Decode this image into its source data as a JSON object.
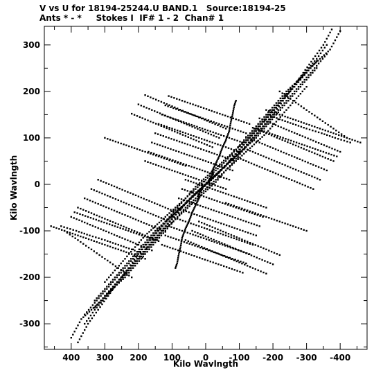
{
  "chart_data": {
    "type": "scatter",
    "title": "V vs U for 18194-25244.U BAND.1   Source:18194-25",
    "subtitle": "Ants * - *     Stokes I  IF# 1 - 2  Chan# 1",
    "xlabel": "Kilo Wavlngth",
    "ylabel": "Kilo Wavlngth",
    "xlim": [
      480,
      -480
    ],
    "ylim": [
      -355,
      340
    ],
    "x_ticks": [
      400,
      300,
      200,
      100,
      0,
      -100,
      -200,
      -300,
      -400
    ],
    "x_tick_labels": [
      "400",
      "300",
      "200",
      "100",
      "0",
      "-100",
      "-200",
      "-300",
      "-400"
    ],
    "y_ticks": [
      300,
      200,
      100,
      0,
      -100,
      -200,
      -300
    ],
    "y_tick_labels": [
      "300",
      "200",
      "100",
      "0",
      "-100",
      "-200",
      "-300"
    ],
    "grid": false,
    "marker_color": "#000000",
    "uv_tracks": {
      "description_free": true,
      "anchor_a": [
        [
          -10,
          0
        ],
        [
          -10,
          10
        ],
        [
          -20,
          20
        ],
        [
          -20,
          30
        ],
        [
          -30,
          45
        ],
        [
          -40,
          60
        ],
        [
          -50,
          80
        ],
        [
          -60,
          95
        ],
        [
          -70,
          115
        ],
        [
          -75,
          135
        ],
        [
          -80,
          150
        ],
        [
          -85,
          170
        ],
        [
          -90,
          180
        ]
      ],
      "tracks": [
        {
          "u": [
            430,
            385,
            345,
            300,
            260,
            220,
            185
          ],
          "v": [
            -90,
            -100,
            -110,
            -120,
            -130,
            -140,
            -150
          ]
        },
        {
          "u": [
            400,
            360,
            320,
            280,
            240,
            200,
            160
          ],
          "v": [
            -70,
            -82,
            -94,
            -106,
            -118,
            -130,
            -142
          ]
        },
        {
          "u": [
            380,
            340,
            300,
            260,
            220,
            180,
            140
          ],
          "v": [
            -50,
            -62,
            -74,
            -86,
            -98,
            -110,
            -122
          ]
        },
        {
          "u": [
            360,
            320,
            280,
            240,
            200,
            160,
            120
          ],
          "v": [
            -30,
            -42,
            -54,
            -66,
            -78,
            -90,
            -102
          ]
        },
        {
          "u": [
            340,
            300,
            260,
            220,
            180,
            140,
            100
          ],
          "v": [
            -10,
            -22,
            -34,
            -46,
            -58,
            -70,
            -82
          ]
        },
        {
          "u": [
            320,
            280,
            240,
            200,
            160,
            120,
            80
          ],
          "v": [
            10,
            -2,
            -14,
            -26,
            -38,
            -50,
            -62
          ]
        },
        {
          "u": [
            180,
            140,
            100,
            60,
            20,
            -20,
            -60
          ],
          "v": [
            50,
            40,
            30,
            20,
            10,
            0,
            -10
          ]
        },
        {
          "u": [
            170,
            130,
            90,
            50,
            10,
            -30,
            -70
          ],
          "v": [
            70,
            60,
            50,
            40,
            30,
            20,
            10
          ]
        },
        {
          "u": [
            160,
            120,
            80,
            40,
            0,
            -40,
            -80
          ],
          "v": [
            90,
            80,
            70,
            60,
            50,
            40,
            30
          ]
        },
        {
          "u": [
            150,
            110,
            70,
            30,
            -10,
            -50,
            -90
          ],
          "v": [
            110,
            100,
            90,
            80,
            70,
            60,
            50
          ]
        },
        {
          "u": [
            140,
            100,
            60,
            20,
            -20,
            -60,
            -100
          ],
          "v": [
            130,
            120,
            110,
            100,
            90,
            80,
            70
          ]
        },
        {
          "u": [
            130,
            90,
            50,
            10,
            -30,
            -70,
            -110
          ],
          "v": [
            150,
            140,
            130,
            120,
            110,
            100,
            90
          ]
        },
        {
          "u": [
            120,
            80,
            40,
            0,
            -40,
            -80,
            -120
          ],
          "v": [
            170,
            160,
            150,
            140,
            130,
            120,
            110
          ]
        },
        {
          "u": [
            110,
            70,
            30,
            -10,
            -50,
            -90,
            -130
          ],
          "v": [
            190,
            180,
            170,
            160,
            150,
            140,
            130
          ]
        },
        {
          "u": [
            -60,
            -100,
            -140,
            -180,
            -220,
            -260,
            -300
          ],
          "v": [
            -40,
            -50,
            -60,
            -70,
            -80,
            -90,
            -100
          ]
        },
        {
          "u": [
            20,
            -20,
            -60,
            -100,
            -140,
            -180,
            -220
          ],
          "v": [
            -80,
            -92,
            -104,
            -116,
            -128,
            -140,
            -152
          ]
        },
        {
          "u": [
            40,
            0,
            -40,
            -80,
            -120,
            -160,
            -200
          ],
          "v": [
            -100,
            -112,
            -124,
            -136,
            -148,
            -160,
            -172
          ]
        },
        {
          "u": [
            60,
            20,
            -20,
            -60,
            -100,
            -140,
            -180
          ],
          "v": [
            -120,
            -132,
            -144,
            -156,
            -168,
            -180,
            -192
          ]
        },
        {
          "u": [
            -150,
            -190,
            -230,
            -270,
            -310,
            -350,
            -390
          ],
          "v": [
            120,
            110,
            100,
            90,
            80,
            70,
            60
          ]
        },
        {
          "u": [
            -180,
            -220,
            -260,
            -300,
            -340,
            -380,
            -420
          ],
          "v": [
            160,
            150,
            140,
            130,
            120,
            110,
            100
          ]
        },
        {
          "u": [
            -220,
            -260,
            -300,
            -340,
            -380,
            -420,
            -460
          ],
          "v": [
            200,
            180,
            160,
            140,
            120,
            100,
            90
          ]
        }
      ],
      "diagonals": [
        {
          "u": [
            380,
            350,
            320,
            290,
            260,
            230,
            200,
            170,
            140,
            110,
            80,
            50,
            20,
            -10,
            -40,
            -70,
            -100,
            -130,
            -160,
            -190,
            -220,
            -250,
            -280,
            -310,
            -340,
            -370,
            -400
          ],
          "v": [
            -340,
            -300,
            -270,
            -240,
            -210,
            -180,
            -150,
            -125,
            -100,
            -75,
            -55,
            -35,
            -15,
            5,
            25,
            50,
            75,
            100,
            125,
            150,
            175,
            200,
            225,
            250,
            270,
            290,
            330
          ]
        },
        {
          "u": [
            360,
            330,
            300,
            270,
            240,
            210,
            180,
            150,
            120,
            90,
            60,
            30,
            0,
            -30,
            -60,
            -90,
            -120,
            -150,
            -180,
            -210,
            -240,
            -270,
            -300,
            -330,
            -360
          ],
          "v": [
            -300,
            -270,
            -245,
            -220,
            -195,
            -170,
            -145,
            -120,
            -95,
            -75,
            -55,
            -35,
            -15,
            5,
            30,
            55,
            80,
            105,
            130,
            155,
            180,
            205,
            230,
            255,
            280
          ]
        },
        {
          "u": [
            330,
            300,
            270,
            240,
            210,
            180,
            150,
            120,
            90,
            60,
            30,
            0,
            -30,
            -60,
            -90,
            -120,
            -150,
            -180,
            -210,
            -240,
            -270,
            -300,
            -330
          ],
          "v": [
            -250,
            -225,
            -200,
            -175,
            -150,
            -125,
            -100,
            -80,
            -60,
            -40,
            -20,
            0,
            20,
            40,
            65,
            90,
            115,
            140,
            165,
            190,
            215,
            240,
            265
          ]
        },
        {
          "u": [
            300,
            270,
            240,
            210,
            180,
            150,
            120,
            90,
            60,
            30,
            0,
            -30,
            -60,
            -90,
            -120,
            -150,
            -180,
            -210,
            -240,
            -270,
            -300
          ],
          "v": [
            -210,
            -185,
            -160,
            -135,
            -110,
            -90,
            -70,
            -50,
            -30,
            -10,
            10,
            30,
            50,
            75,
            100,
            125,
            150,
            175,
            200,
            220,
            240
          ]
        }
      ]
    }
  }
}
